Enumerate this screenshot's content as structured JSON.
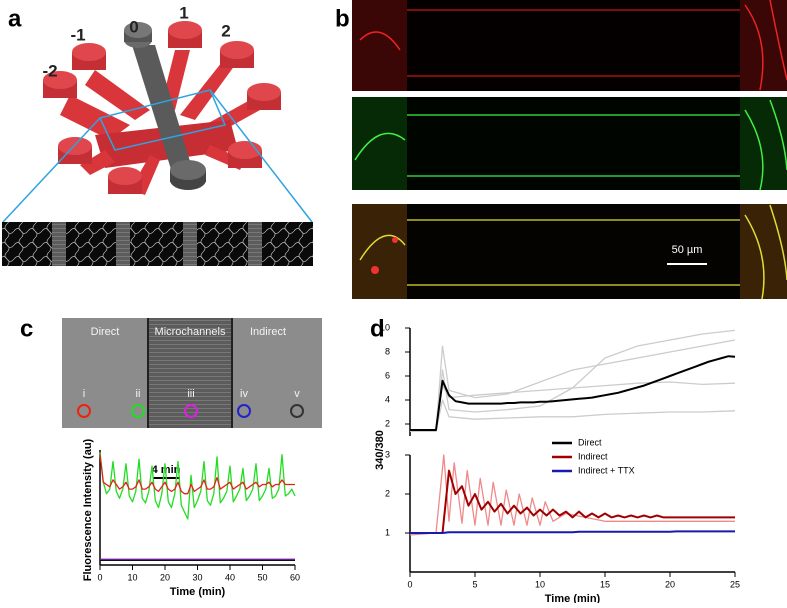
{
  "panels": [
    {
      "label": "a",
      "port_labels": [
        "-2",
        "-1",
        "0",
        "1",
        "2"
      ]
    },
    {
      "label": "b",
      "scale_bar": "50 µm"
    },
    {
      "label": "c",
      "regions": [
        "Direct",
        "Microchannels",
        "Indirect"
      ],
      "roi_labels": [
        "i",
        "ii",
        "iii",
        "iv",
        "v"
      ],
      "time_bar": "4 min"
    },
    {
      "label": "d"
    }
  ],
  "chart_data": [
    {
      "type": "line",
      "xlabel": "Time (min)",
      "ylabel": "Fluorescence Intensity (au)",
      "xlim": [
        0,
        60
      ],
      "xticks": [
        0,
        10,
        20,
        30,
        40,
        50,
        60
      ],
      "ylim": [
        0,
        100
      ],
      "x": [
        0,
        1,
        2,
        3,
        4,
        5,
        6,
        7,
        8,
        9,
        10,
        11,
        12,
        13,
        14,
        15,
        16,
        17,
        18,
        19,
        20,
        21,
        22,
        23,
        24,
        25,
        26,
        27,
        28,
        29,
        30,
        31,
        32,
        33,
        34,
        35,
        36,
        37,
        38,
        39,
        40,
        41,
        42,
        43,
        44,
        45,
        46,
        47,
        48,
        49,
        50,
        51,
        52,
        53,
        54,
        55,
        56,
        57,
        58,
        59,
        60
      ],
      "series": [
        {
          "color": "#22dd22",
          "values": [
            98,
            72,
            62,
            66,
            90,
            64,
            58,
            66,
            88,
            60,
            55,
            64,
            92,
            58,
            54,
            64,
            86,
            56,
            50,
            62,
            88,
            55,
            50,
            62,
            90,
            52,
            46,
            40,
            78,
            50,
            56,
            64,
            90,
            56,
            52,
            62,
            94,
            54,
            58,
            64,
            86,
            55,
            60,
            66,
            84,
            56,
            60,
            66,
            88,
            56,
            60,
            66,
            84,
            58,
            60,
            66,
            96,
            60,
            62,
            66,
            60
          ]
        },
        {
          "color": "#e8201a",
          "values": [
            96,
            72,
            70,
            68,
            74,
            70,
            66,
            68,
            72,
            66,
            66,
            68,
            74,
            66,
            66,
            68,
            72,
            66,
            64,
            68,
            72,
            66,
            64,
            66,
            72,
            64,
            62,
            62,
            70,
            64,
            66,
            68,
            74,
            66,
            66,
            68,
            76,
            66,
            68,
            70,
            72,
            66,
            68,
            70,
            72,
            66,
            68,
            70,
            72,
            68,
            70,
            70,
            72,
            68,
            70,
            70,
            74,
            70,
            70,
            70,
            70
          ]
        },
        {
          "color": "#111111",
          "x": [
            0,
            60
          ],
          "values": [
            4,
            4
          ]
        },
        {
          "color": "#6a1b9a",
          "x": [
            0,
            60
          ],
          "values": [
            5,
            5
          ]
        }
      ]
    },
    {
      "type": "line",
      "ylabel": "340/380",
      "xlim": [
        0,
        25
      ],
      "ylim": [
        1,
        10
      ],
      "yticks": [
        2,
        4,
        6,
        8,
        10
      ],
      "x": [
        0,
        0.5,
        1,
        1.5,
        2,
        2.5,
        3,
        3.5,
        4,
        4.5,
        5,
        5.5,
        6,
        6.5,
        7,
        7.5,
        8,
        8.5,
        9,
        9.5,
        10,
        10.5,
        11,
        11.5,
        12,
        12.5,
        13,
        13.5,
        14,
        14.5,
        15,
        15.5,
        16,
        16.5,
        17,
        17.5,
        18,
        18.5,
        19,
        19.5,
        20,
        20.5,
        21,
        21.5,
        22,
        22.5,
        23,
        23.5,
        24,
        24.5,
        25
      ],
      "series": [
        {
          "color": "#cccccc",
          "x": [
            0,
            2,
            2.5,
            3,
            5,
            7.5,
            10,
            12.5,
            15,
            17.5,
            20,
            22.5,
            25
          ],
          "values": [
            1.4,
            1.4,
            6.5,
            3.2,
            3.0,
            3.2,
            3.5,
            5.0,
            7.5,
            8.5,
            9.0,
            9.5,
            9.8
          ]
        },
        {
          "color": "#cccccc",
          "x": [
            0,
            2,
            2.5,
            3,
            5,
            7.5,
            10,
            12.5,
            15,
            17.5,
            20,
            22.5,
            25
          ],
          "values": [
            1.4,
            1.4,
            4.0,
            2.6,
            2.4,
            2.5,
            2.6,
            2.6,
            2.8,
            2.9,
            3.0,
            3.0,
            3.1
          ]
        },
        {
          "color": "#cccccc",
          "x": [
            0,
            2,
            2.5,
            3,
            5,
            7.5,
            10,
            12.5,
            15,
            17.5,
            20,
            22.5,
            25
          ],
          "values": [
            1.4,
            1.4,
            5.2,
            4.2,
            4.4,
            4.6,
            4.8,
            5.0,
            5.2,
            5.4,
            5.5,
            5.3,
            5.4
          ]
        },
        {
          "color": "#cccccc",
          "x": [
            0,
            2,
            2.5,
            3,
            5,
            7.5,
            10,
            12.5,
            15,
            17.5,
            20,
            22.5,
            25
          ],
          "values": [
            1.4,
            1.4,
            8.5,
            4.8,
            4.2,
            4.5,
            5.5,
            6.5,
            7.0,
            7.5,
            8.0,
            8.5,
            9.0
          ]
        },
        {
          "name": "Direct",
          "color": "#000000",
          "values": [
            1.5,
            1.5,
            1.5,
            1.5,
            1.5,
            5.6,
            4.4,
            3.9,
            3.8,
            3.7,
            3.7,
            3.7,
            3.7,
            3.7,
            3.7,
            3.75,
            3.75,
            3.8,
            3.8,
            3.8,
            3.85,
            3.85,
            3.9,
            3.95,
            4.0,
            4.05,
            4.1,
            4.15,
            4.2,
            4.3,
            4.4,
            4.5,
            4.6,
            4.75,
            4.9,
            5.05,
            5.2,
            5.4,
            5.6,
            5.8,
            6.0,
            6.2,
            6.4,
            6.6,
            6.8,
            7.0,
            7.2,
            7.35,
            7.5,
            7.65,
            7.6
          ]
        }
      ]
    },
    {
      "type": "line",
      "xlabel": "Time (min)",
      "xlim": [
        0,
        25
      ],
      "xticks": [
        0,
        5,
        10,
        15,
        20,
        25
      ],
      "ylim": [
        0,
        3
      ],
      "yticks": [
        1,
        2,
        3
      ],
      "x": [
        0,
        0.5,
        1,
        1.5,
        2,
        2.5,
        3,
        3.5,
        4,
        4.5,
        5,
        5.5,
        6,
        6.5,
        7,
        7.5,
        8,
        8.5,
        9,
        9.5,
        10,
        10.5,
        11,
        11.5,
        12,
        12.5,
        13,
        13.5,
        14,
        14.5,
        15,
        15.5,
        16,
        16.5,
        17,
        17.5,
        18,
        18.5,
        19,
        19.5,
        20,
        20.5,
        21,
        21.5,
        22,
        22.5,
        23,
        23.5,
        24,
        24.5,
        25
      ],
      "series": [
        {
          "color": "#f08a8a",
          "x": [
            0,
            2,
            2.6,
            3,
            3.4,
            4,
            4.4,
            5,
            5.4,
            6,
            6.4,
            7,
            7.4,
            8,
            8.4,
            9,
            9.4,
            10,
            10.4,
            11,
            12,
            15,
            20,
            25
          ],
          "values": [
            0.95,
            1.0,
            3.0,
            1.3,
            2.8,
            1.25,
            2.6,
            1.2,
            2.4,
            1.2,
            2.3,
            1.2,
            2.1,
            1.2,
            2.0,
            1.2,
            1.9,
            1.2,
            1.8,
            1.3,
            1.5,
            1.3,
            1.3,
            1.3
          ]
        },
        {
          "name": "Indirect",
          "color": "#a00000",
          "values": [
            1.0,
            1.0,
            1.0,
            1.0,
            1.0,
            1.0,
            2.6,
            2.0,
            2.2,
            1.7,
            2.0,
            1.6,
            1.8,
            1.55,
            1.75,
            1.5,
            1.7,
            1.5,
            1.65,
            1.45,
            1.6,
            1.45,
            1.6,
            1.45,
            1.55,
            1.4,
            1.55,
            1.4,
            1.5,
            1.4,
            1.5,
            1.4,
            1.45,
            1.4,
            1.45,
            1.4,
            1.45,
            1.4,
            1.45,
            1.4,
            1.4,
            1.4,
            1.4,
            1.4,
            1.4,
            1.4,
            1.4,
            1.4,
            1.4,
            1.4,
            1.4
          ]
        },
        {
          "name": "Indirect + TTX",
          "color": "#1a1aaa",
          "values": [
            1.0,
            1.0,
            1.0,
            1.0,
            1.0,
            1.0,
            1.02,
            1.02,
            1.02,
            1.02,
            1.02,
            1.02,
            1.02,
            1.02,
            1.02,
            1.02,
            1.02,
            1.02,
            1.02,
            1.02,
            1.02,
            1.02,
            1.02,
            1.02,
            1.02,
            1.02,
            1.03,
            1.03,
            1.03,
            1.03,
            1.03,
            1.03,
            1.03,
            1.03,
            1.03,
            1.03,
            1.03,
            1.03,
            1.03,
            1.03,
            1.03,
            1.04,
            1.04,
            1.04,
            1.04,
            1.04,
            1.04,
            1.04,
            1.04,
            1.04,
            1.04
          ]
        }
      ]
    }
  ]
}
